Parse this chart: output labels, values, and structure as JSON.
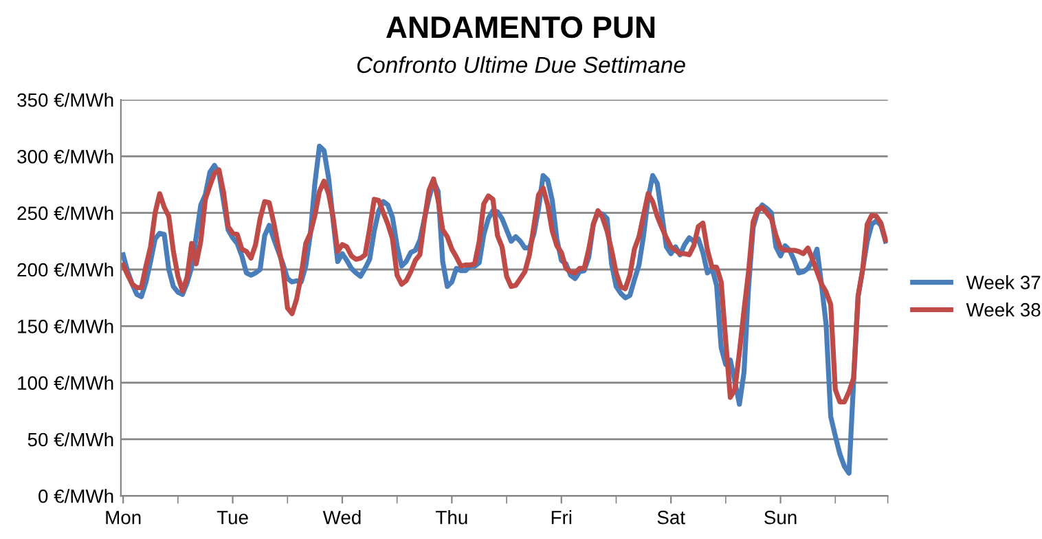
{
  "chart_data": {
    "type": "line",
    "title": "ANDAMENTO PUN",
    "subtitle": "Confronto Ultime Due Settimane",
    "categories": [
      "Mon",
      null,
      null,
      null,
      null,
      null,
      null,
      null,
      null,
      null,
      null,
      null,
      null,
      null,
      null,
      null,
      null,
      null,
      null,
      null,
      null,
      null,
      null,
      null,
      "Tue",
      null,
      null,
      null,
      null,
      null,
      null,
      null,
      null,
      null,
      null,
      null,
      null,
      null,
      null,
      null,
      null,
      null,
      null,
      null,
      null,
      null,
      null,
      null,
      "Wed",
      null,
      null,
      null,
      null,
      null,
      null,
      null,
      null,
      null,
      null,
      null,
      null,
      null,
      null,
      null,
      null,
      null,
      null,
      null,
      null,
      null,
      null,
      null,
      "Thu",
      null,
      null,
      null,
      null,
      null,
      null,
      null,
      null,
      null,
      null,
      null,
      null,
      null,
      null,
      null,
      null,
      null,
      null,
      null,
      null,
      null,
      null,
      null,
      "Fri",
      null,
      null,
      null,
      null,
      null,
      null,
      null,
      null,
      null,
      null,
      null,
      null,
      null,
      null,
      null,
      null,
      null,
      null,
      null,
      null,
      null,
      null,
      null,
      "Sat",
      null,
      null,
      null,
      null,
      null,
      null,
      null,
      null,
      null,
      null,
      null,
      null,
      null,
      null,
      null,
      null,
      null,
      null,
      null,
      null,
      null,
      null,
      null,
      "Sun",
      null,
      null,
      null,
      null,
      null,
      null,
      null,
      null,
      null,
      null,
      null,
      null,
      null,
      null,
      null,
      null,
      null,
      null,
      null,
      null,
      null,
      null,
      null
    ],
    "ylim": [
      0,
      350
    ],
    "yticks": [
      {
        "value": 0,
        "label": "0 €/MWh"
      },
      {
        "value": 50,
        "label": "50 €/MWh"
      },
      {
        "value": 100,
        "label": "100 €/MWh"
      },
      {
        "value": 150,
        "label": "150 €/MWh"
      },
      {
        "value": 200,
        "label": "200 €/MWh"
      },
      {
        "value": 250,
        "label": "250 €/MWh"
      },
      {
        "value": 300,
        "label": "300 €/MWh"
      },
      {
        "value": 350,
        "label": "350 €/MWh"
      }
    ],
    "grid": "y",
    "legend": "right",
    "line_style": "solid",
    "series": [
      {
        "name": "Week 37",
        "color": "#4a7ebb",
        "values": [
          213,
          198,
          187,
          178,
          176,
          189,
          207,
          227,
          232,
          231,
          200,
          185,
          180,
          178,
          188,
          202,
          229,
          257,
          266,
          286,
          292,
          285,
          260,
          235,
          228,
          223,
          212,
          197,
          195,
          197,
          200,
          230,
          239,
          227,
          216,
          205,
          192,
          189,
          190,
          189,
          203,
          231,
          276,
          309,
          305,
          281,
          243,
          207,
          214,
          208,
          201,
          197,
          194,
          201,
          209,
          234,
          252,
          260,
          257,
          246,
          221,
          203,
          207,
          215,
          217,
          226,
          245,
          263,
          278,
          269,
          207,
          185,
          189,
          201,
          199,
          199,
          203,
          203,
          206,
          231,
          245,
          252,
          251,
          245,
          235,
          225,
          229,
          225,
          219,
          219,
          232,
          254,
          283,
          279,
          261,
          227,
          208,
          205,
          195,
          192,
          198,
          199,
          211,
          240,
          250,
          249,
          245,
          205,
          185,
          179,
          175,
          177,
          191,
          204,
          230,
          263,
          283,
          276,
          249,
          220,
          214,
          220,
          213,
          222,
          228,
          225,
          227,
          215,
          197,
          201,
          186,
          131,
          116,
          120,
          101,
          81,
          109,
          184,
          237,
          251,
          257,
          254,
          250,
          220,
          212,
          221,
          217,
          208,
          197,
          198,
          201,
          208,
          218,
          186,
          151,
          70,
          53,
          37,
          26,
          20,
          100,
          176,
          200,
          225,
          240,
          243,
          239,
          225
        ]
      },
      {
        "name": "Week 38",
        "color": "#be4b48",
        "values": [
          204,
          195,
          187,
          184,
          184,
          203,
          220,
          250,
          267,
          255,
          247,
          216,
          194,
          181,
          193,
          223,
          205,
          225,
          262,
          274,
          285,
          288,
          268,
          238,
          232,
          231,
          218,
          216,
          210,
          222,
          245,
          260,
          259,
          241,
          220,
          201,
          166,
          161,
          174,
          195,
          223,
          232,
          248,
          269,
          278,
          267,
          246,
          216,
          222,
          220,
          212,
          209,
          210,
          213,
          236,
          262,
          261,
          250,
          240,
          227,
          195,
          187,
          190,
          198,
          208,
          213,
          244,
          270,
          280,
          261,
          235,
          229,
          218,
          211,
          203,
          204,
          204,
          205,
          225,
          258,
          265,
          262,
          230,
          220,
          194,
          185,
          186,
          192,
          198,
          213,
          239,
          266,
          272,
          257,
          234,
          221,
          215,
          201,
          198,
          197,
          201,
          201,
          218,
          240,
          252,
          246,
          234,
          217,
          197,
          185,
          183,
          195,
          218,
          229,
          248,
          267,
          260,
          247,
          237,
          228,
          220,
          217,
          214,
          214,
          213,
          221,
          238,
          241,
          217,
          202,
          202,
          189,
          137,
          87,
          94,
          127,
          164,
          198,
          242,
          253,
          255,
          250,
          245,
          230,
          219,
          217,
          217,
          217,
          216,
          214,
          219,
          209,
          198,
          187,
          180,
          169,
          94,
          83,
          83,
          92,
          104,
          177,
          200,
          240,
          248,
          247,
          241,
          226
        ]
      }
    ]
  }
}
